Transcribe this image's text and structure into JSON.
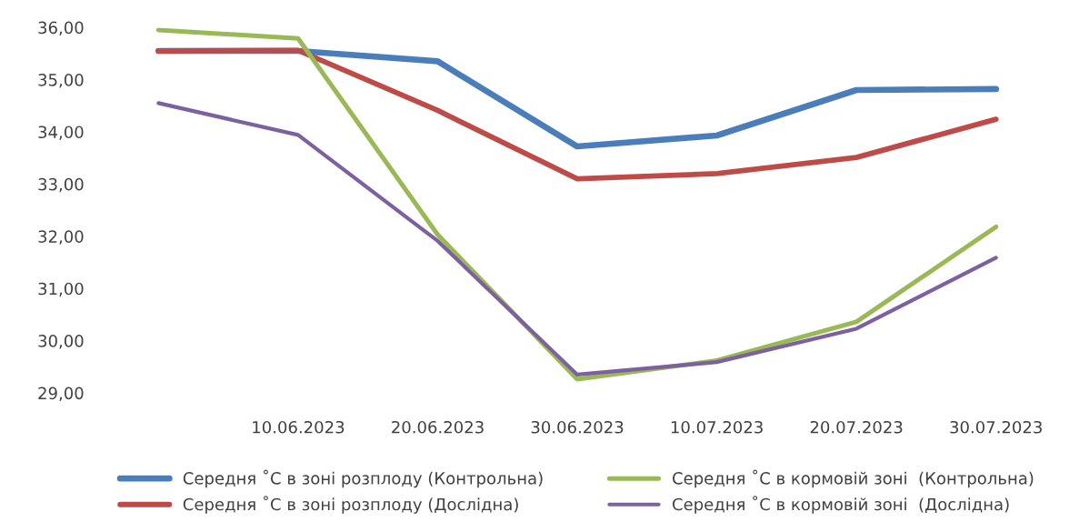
{
  "chart_data": {
    "type": "line",
    "categories": [
      null,
      "10.06.2023",
      "20.06.2023",
      "30.06.2023",
      "10.07.2023",
      "20.07.2023",
      "30.07.2023"
    ],
    "series": [
      {
        "name": "Середня ˚С в зоні розплоду (Контрольна)",
        "color": "#4a7ebb",
        "values": [
          35.55,
          35.55,
          35.35,
          33.72,
          33.93,
          34.8,
          34.82
        ]
      },
      {
        "name": "Середня ˚С в зоні розплоду (Дослідна)",
        "color": "#be4b48",
        "values": [
          35.55,
          35.56,
          34.41,
          33.1,
          33.2,
          33.51,
          34.24
        ]
      },
      {
        "name": "Середня ˚С в кормовій зоні  (Контрольна)",
        "color": "#98b954",
        "values": [
          35.95,
          35.79,
          32.03,
          29.26,
          29.62,
          30.36,
          32.18
        ]
      },
      {
        "name": "Середня ˚С в кормовій зоні  (Дослідна)",
        "color": "#7d60a0",
        "values": [
          34.55,
          33.94,
          31.91,
          29.35,
          29.59,
          30.23,
          31.59
        ]
      }
    ],
    "ylim": [
      29,
      36
    ],
    "yticks": [
      {
        "value": 29,
        "label": "29,00"
      },
      {
        "value": 30,
        "label": "30,00"
      },
      {
        "value": 31,
        "label": "31,00"
      },
      {
        "value": 32,
        "label": "32,00"
      },
      {
        "value": 33,
        "label": "33,00"
      },
      {
        "value": 34,
        "label": "34,00"
      },
      {
        "value": 35,
        "label": "35,00"
      },
      {
        "value": 36,
        "label": "36,00"
      }
    ],
    "grid": false,
    "legend": "bottom",
    "marker": "none",
    "line_style": "solid"
  }
}
